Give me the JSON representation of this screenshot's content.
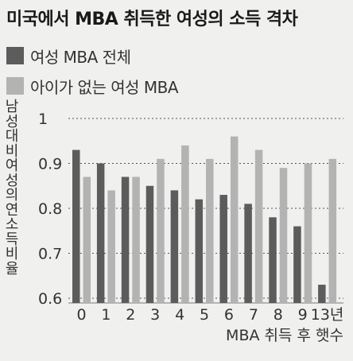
{
  "chart_data": {
    "type": "bar",
    "title": "미국에서 MBA 취득한 여성의 소득 격차",
    "xlabel": "MBA 취득 후 햇수",
    "ylabel": "남성 대비 여성의 연소득 비율",
    "categories": [
      "0",
      "1",
      "2",
      "3",
      "4",
      "5",
      "6",
      "7",
      "8",
      "9",
      "13년"
    ],
    "series": [
      {
        "name": "여성 MBA 전체",
        "color": "#5c5c5c",
        "values": [
          0.93,
          0.9,
          0.87,
          0.85,
          0.84,
          0.82,
          0.83,
          0.81,
          0.78,
          0.76,
          0.63
        ]
      },
      {
        "name": "아이가 없는 여성 MBA",
        "color": "#b3b3b3",
        "values": [
          0.87,
          0.84,
          0.87,
          0.91,
          0.94,
          0.91,
          0.96,
          0.93,
          0.89,
          0.9,
          0.91
        ]
      }
    ],
    "ylim": [
      0.6,
      1.0
    ],
    "yticks": [
      "0.6",
      "0.7",
      "0.8",
      "0.9",
      "1"
    ],
    "grid": true,
    "legend_position": "top-left"
  }
}
